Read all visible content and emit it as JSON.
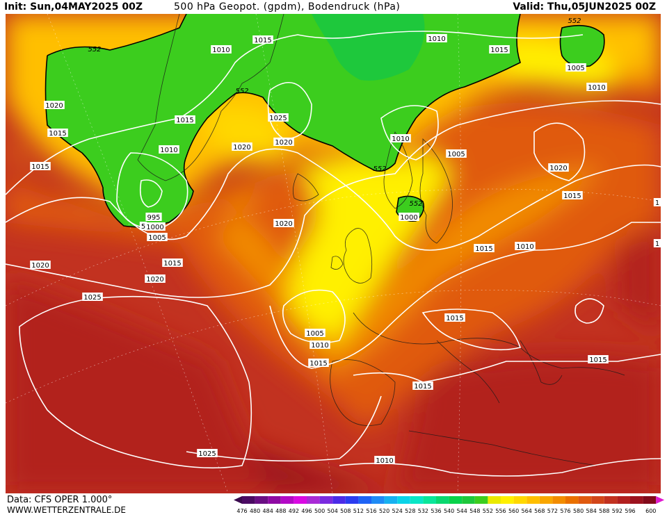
{
  "header": {
    "init": "Init: Sun,04MAY2025 00Z",
    "title": "500 hPa Geopot. (gpdm), Bodendruck (hPa)",
    "valid": "Valid: Thu,05JUN2025 00Z"
  },
  "footer": {
    "data": "Data: CFS OPER 1.000°",
    "site": "WWW.WETTERZENTRALE.DE"
  },
  "legend": {
    "values": [
      "476",
      "480",
      "484",
      "488",
      "492",
      "496",
      "500",
      "504",
      "508",
      "512",
      "516",
      "520",
      "524",
      "528",
      "532",
      "536",
      "540",
      "544",
      "548",
      "552",
      "556",
      "560",
      "564",
      "568",
      "572",
      "576",
      "580",
      "584",
      "588",
      "592",
      "596",
      "600"
    ],
    "colors": [
      "#4b0b63",
      "#6a0f83",
      "#8e0aa3",
      "#b30ac6",
      "#d90ae3",
      "#a92bd6",
      "#7a2be0",
      "#4b2be8",
      "#2b3cf0",
      "#1e63f5",
      "#1f8bf5",
      "#17b1f0",
      "#0ad3e8",
      "#0ae6c6",
      "#0ae69a",
      "#0ad870",
      "#0ad24a",
      "#1ec83c",
      "#3ccd1e",
      "#eaea00",
      "#fff000",
      "#ffd800",
      "#ffbf00",
      "#f9a600",
      "#f28c00",
      "#ea7000",
      "#e05a10",
      "#d2461a",
      "#c23220",
      "#b2201f",
      "#9c121e",
      "#820a1a"
    ]
  },
  "map_labels": {
    "isobars": [
      {
        "t": "1010"
      },
      {
        "t": "1015"
      },
      {
        "t": "1010"
      },
      {
        "t": "1015"
      },
      {
        "t": "1005"
      },
      {
        "t": "1010"
      },
      {
        "t": "1020"
      },
      {
        "t": "1015"
      },
      {
        "t": "1015"
      },
      {
        "t": "1010"
      },
      {
        "t": "1025"
      },
      {
        "t": "1020"
      },
      {
        "t": "1020"
      },
      {
        "t": "1015"
      },
      {
        "t": "1010"
      },
      {
        "t": "1005"
      },
      {
        "t": "1020"
      },
      {
        "t": "1015"
      },
      {
        "t": "995"
      },
      {
        "t": "1000"
      },
      {
        "t": "1005"
      },
      {
        "t": "1020"
      },
      {
        "t": "1000"
      },
      {
        "t": "1015"
      },
      {
        "t": "1010"
      },
      {
        "t": "1020"
      },
      {
        "t": "1015"
      },
      {
        "t": "1020"
      },
      {
        "t": "1025"
      },
      {
        "t": "1005"
      },
      {
        "t": "1010"
      },
      {
        "t": "1015"
      },
      {
        "t": "1015"
      },
      {
        "t": "1015"
      },
      {
        "t": "1015"
      },
      {
        "t": "1025"
      },
      {
        "t": "1010"
      },
      {
        "t": "1"
      },
      {
        "t": "1"
      },
      {
        "t": "5"
      }
    ],
    "geopotential": [
      {
        "t": "552"
      },
      {
        "t": "552"
      },
      {
        "t": "552"
      },
      {
        "t": "552"
      },
      {
        "t": "552"
      }
    ]
  }
}
